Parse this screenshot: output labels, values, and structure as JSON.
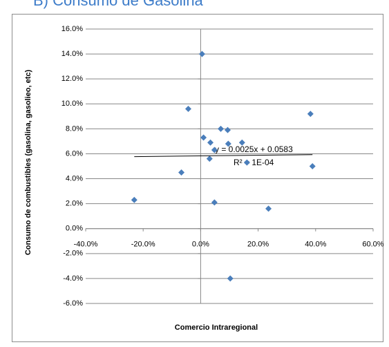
{
  "chart_data": {
    "type": "scatter",
    "title": "B)   Consumo de Gasolina",
    "x_label": "Comercio Intraregional",
    "y_label": "Consumo de combustibles (gasolina, gasolieo, etc)",
    "color": "#4a7ebb",
    "x": [
      0.5,
      -4.3,
      38.2,
      7.0,
      9.4,
      1.0,
      3.4,
      14.4,
      9.6,
      4.8,
      3.1,
      16.1,
      38.9,
      -6.7,
      -23.1,
      4.8,
      23.6,
      10.3
    ],
    "values": [
      14.0,
      9.6,
      9.2,
      8.0,
      7.9,
      7.3,
      6.9,
      6.9,
      6.8,
      6.3,
      5.6,
      5.3,
      5.0,
      4.5,
      2.3,
      2.1,
      1.6,
      -4.0
    ],
    "xlim": [
      -40,
      60
    ],
    "xticks": [
      {
        "value": -40,
        "label": "-40.0%"
      },
      {
        "value": -20,
        "label": "-20.0%"
      },
      {
        "value": 0,
        "label": "0.0%"
      },
      {
        "value": 20,
        "label": "20.0%"
      },
      {
        "value": 40,
        "label": "40.0%"
      },
      {
        "value": 60,
        "label": "60.0%"
      }
    ],
    "ylim": [
      -6,
      16
    ],
    "yticks": [
      {
        "value": -6,
        "label": "-6.0%"
      },
      {
        "value": -4,
        "label": "-4.0%"
      },
      {
        "value": -2,
        "label": "-2.0%"
      },
      {
        "value": 0,
        "label": "0.0%"
      },
      {
        "value": 2,
        "label": "2.0%"
      },
      {
        "value": 4,
        "label": "4.0%"
      },
      {
        "value": 6,
        "label": "6.0%"
      },
      {
        "value": 8,
        "label": "8.0%"
      },
      {
        "value": 10,
        "label": "10.0%"
      },
      {
        "value": 12,
        "label": "12.0%"
      },
      {
        "value": 14,
        "label": "14.0%"
      },
      {
        "value": 16,
        "label": "16.0%"
      }
    ],
    "grid": true,
    "trendline": {
      "equation": "y = 0.0025x + 0.0583",
      "r_squared": "R² = 1E-04",
      "slope": 0.0025,
      "intercept": 5.83
    }
  }
}
